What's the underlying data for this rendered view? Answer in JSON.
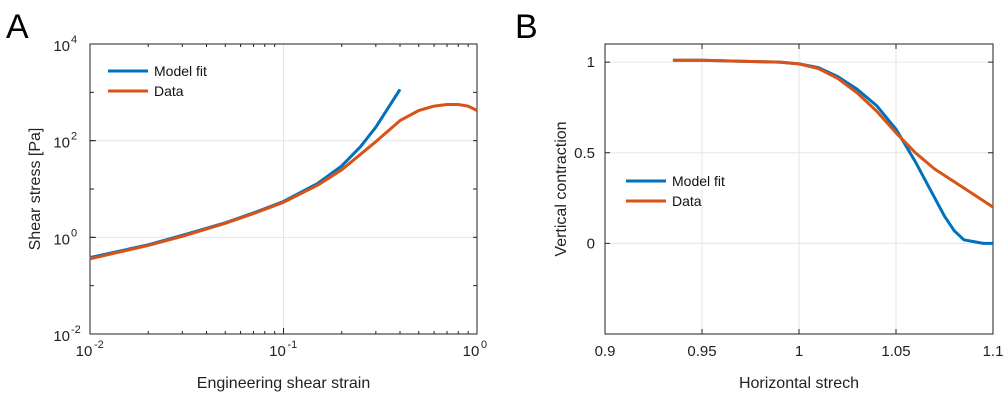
{
  "chart_data": [
    {
      "panel": "A",
      "type": "line",
      "xlabel": "Engineering shear strain",
      "ylabel": "Shear stress [Pa]",
      "xscale": "log",
      "yscale": "log",
      "xlim": [
        0.01,
        1
      ],
      "ylim": [
        0.01,
        10000
      ],
      "x_ticks": [
        {
          "base": "10",
          "exp": "-2"
        },
        {
          "base": "10",
          "exp": "-1"
        },
        {
          "base": "10",
          "exp": "0"
        }
      ],
      "y_ticks": [
        {
          "base": "10",
          "exp": "-2"
        },
        {
          "base": "10",
          "exp": "0"
        },
        {
          "base": "10",
          "exp": "2"
        },
        {
          "base": "10",
          "exp": "4"
        }
      ],
      "grid": true,
      "legend_position": "top-left",
      "series": [
        {
          "name": "Model fit",
          "color": "#0072BD",
          "x": [
            0.01,
            0.02,
            0.03,
            0.05,
            0.07,
            0.1,
            0.15,
            0.2,
            0.25,
            0.3,
            0.35,
            0.4
          ],
          "y": [
            0.38,
            0.7,
            1.1,
            2.0,
            3.2,
            5.5,
            13,
            30,
            75,
            190,
            500,
            1150
          ]
        },
        {
          "name": "Data",
          "color": "#D95319",
          "x": [
            0.01,
            0.02,
            0.03,
            0.05,
            0.07,
            0.1,
            0.15,
            0.2,
            0.3,
            0.4,
            0.5,
            0.6,
            0.7,
            0.8,
            0.9,
            1.0
          ],
          "y": [
            0.36,
            0.68,
            1.05,
            1.95,
            3.1,
            5.3,
            12,
            25,
            95,
            260,
            420,
            520,
            560,
            560,
            520,
            420
          ]
        }
      ]
    },
    {
      "panel": "B",
      "type": "line",
      "xlabel": "Horizontal strech",
      "ylabel": "Vertical contraction",
      "xlim": [
        0.9,
        1.1
      ],
      "ylim": [
        -0.5,
        1.1
      ],
      "x_ticks": [
        "0.9",
        "0.95",
        "1",
        "1.05",
        "1.1"
      ],
      "y_ticks": [
        "0",
        "0.5",
        "1"
      ],
      "y_tick_values": [
        0,
        0.5,
        1
      ],
      "x_tick_values": [
        0.9,
        0.95,
        1,
        1.05,
        1.1
      ],
      "grid": true,
      "legend_position": "middle-left",
      "series": [
        {
          "name": "Model fit",
          "color": "#0072BD",
          "x": [
            0.935,
            0.95,
            0.97,
            0.99,
            1.0,
            1.01,
            1.02,
            1.03,
            1.04,
            1.05,
            1.06,
            1.07,
            1.075,
            1.08,
            1.085,
            1.09,
            1.095,
            1.1
          ],
          "y": [
            1.01,
            1.01,
            1.005,
            1.0,
            0.99,
            0.97,
            0.92,
            0.85,
            0.76,
            0.63,
            0.45,
            0.25,
            0.15,
            0.07,
            0.02,
            0.01,
            0.0,
            0.0
          ]
        },
        {
          "name": "Data",
          "color": "#D95319",
          "x": [
            0.935,
            0.95,
            0.97,
            0.99,
            1.0,
            1.01,
            1.02,
            1.03,
            1.04,
            1.05,
            1.06,
            1.07,
            1.08,
            1.09,
            1.1
          ],
          "y": [
            1.01,
            1.01,
            1.005,
            1.0,
            0.99,
            0.965,
            0.91,
            0.83,
            0.73,
            0.61,
            0.5,
            0.41,
            0.34,
            0.27,
            0.2
          ]
        }
      ]
    }
  ],
  "panel_letters": [
    "A",
    "B"
  ]
}
